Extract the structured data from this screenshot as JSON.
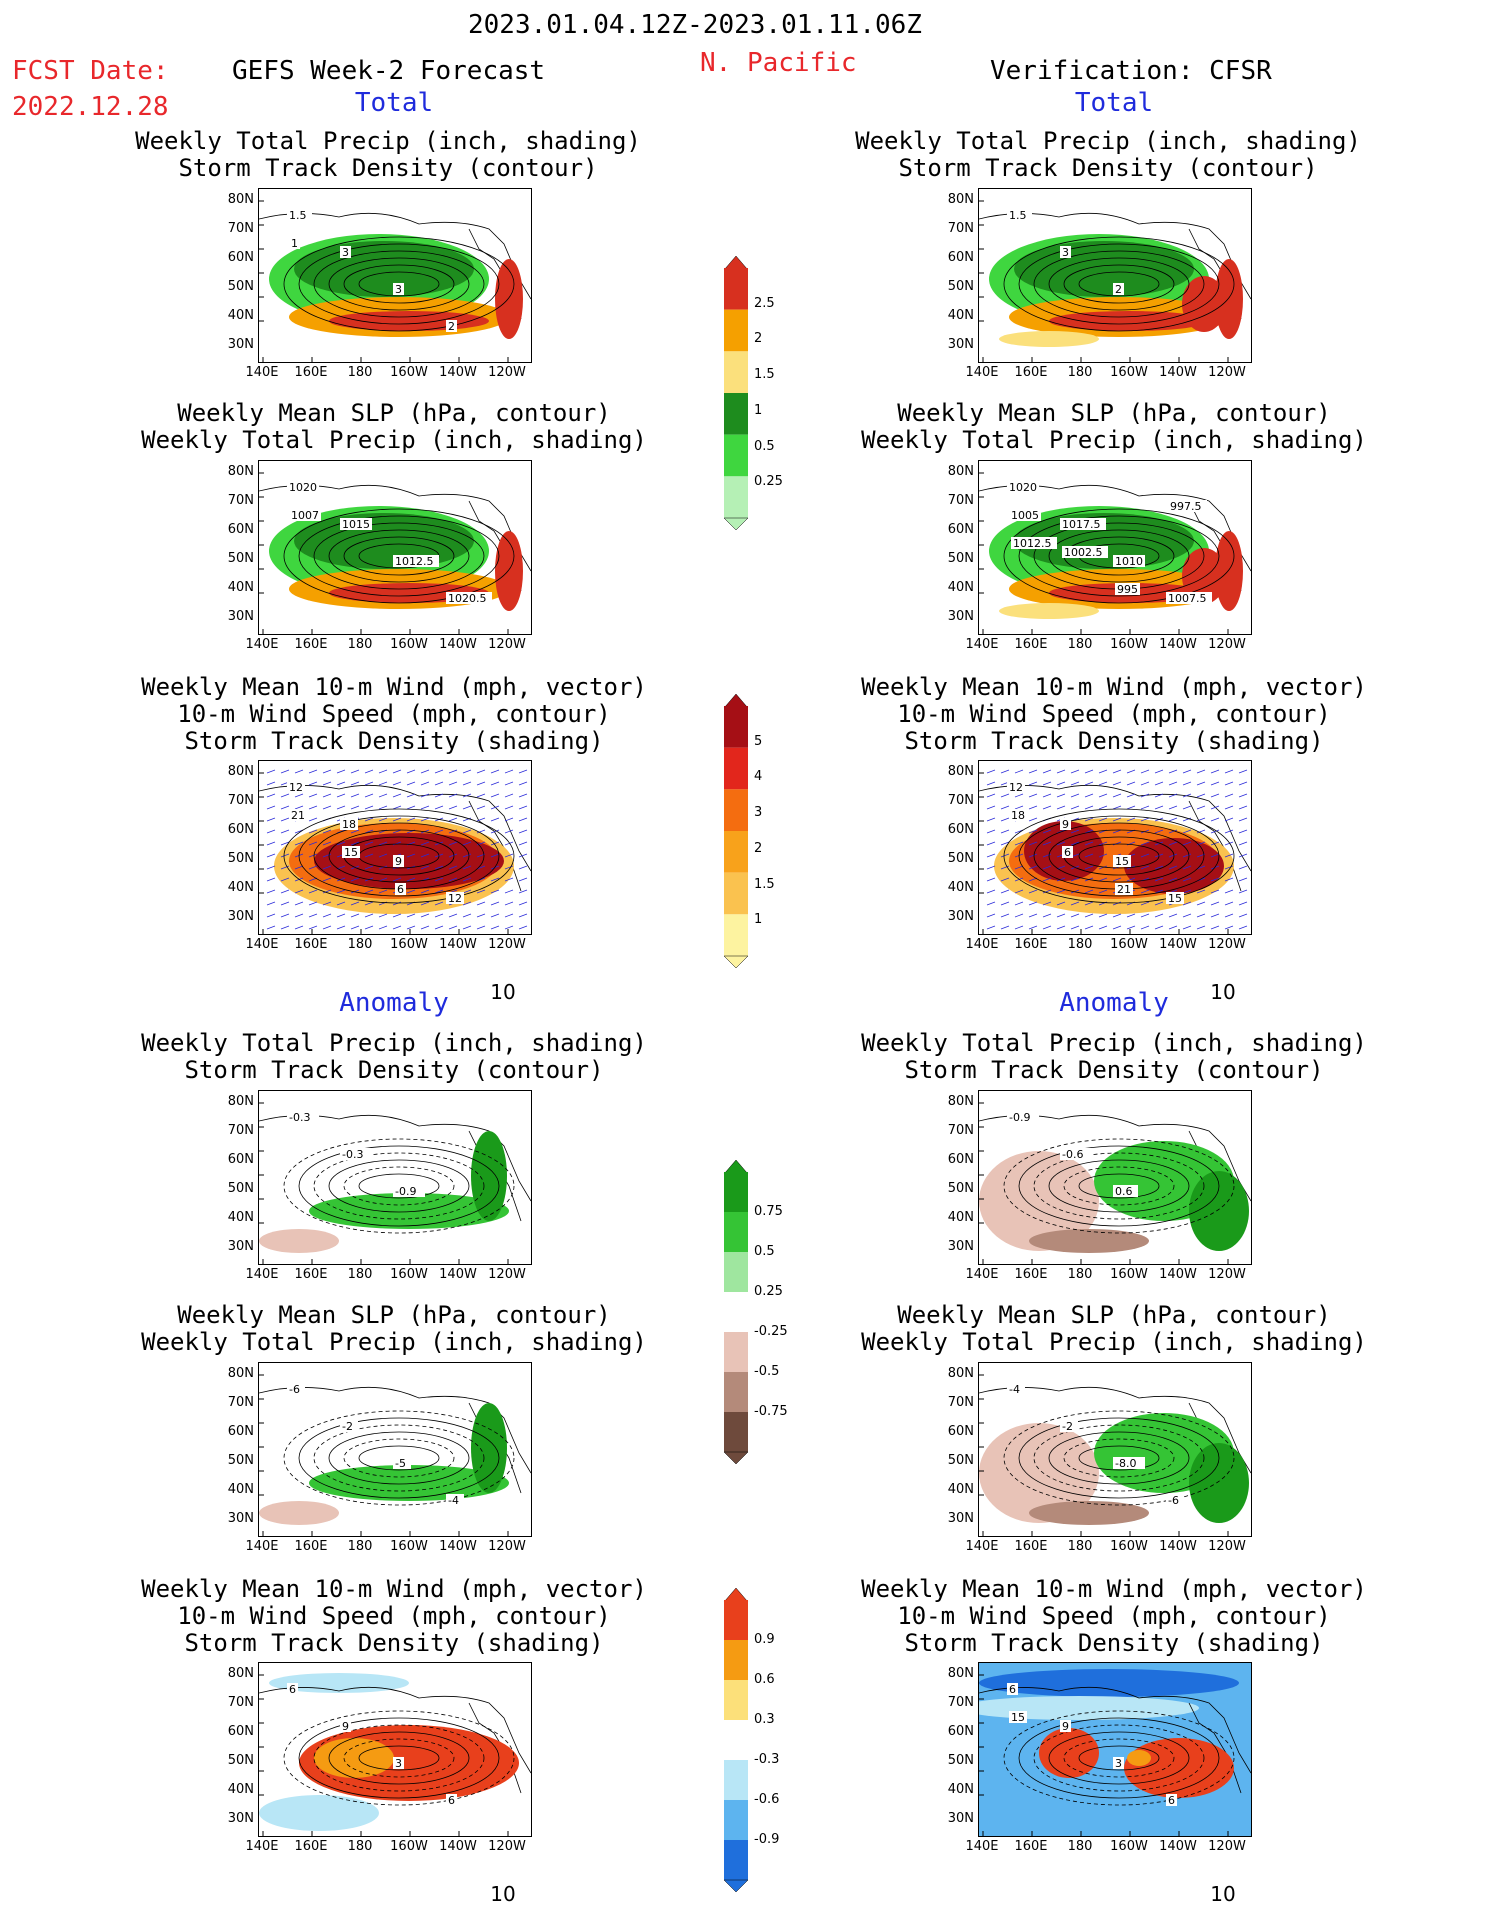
{
  "header": {
    "date_range": "2023.01.04.12Z-2023.01.11.06Z",
    "fcst_label": "FCST Date:",
    "fcst_date": "2022.12.28",
    "left_title": "GEFS Week-2 Forecast",
    "region": "N. Pacific",
    "right_title": "Verification: CFSR"
  },
  "sections": {
    "total": "Total",
    "anomaly": "Anomaly"
  },
  "panel_titles": {
    "precip_track": "Weekly Total Precip (inch, shading)\nStorm Track Density (contour)",
    "slp_precip": "Weekly Mean SLP (hPa, contour)\nWeekly Total Precip (inch, shading)",
    "wind_track": "Weekly Mean 10-m Wind (mph, vector)\n10-m Wind Speed (mph, contour)\nStorm Track Density (shading)"
  },
  "axes": {
    "lat_ticks": [
      "80N",
      "70N",
      "60N",
      "50N",
      "40N",
      "30N"
    ],
    "lon_ticks": [
      "140E",
      "160E",
      "180",
      "160W",
      "140W",
      "120W"
    ]
  },
  "vector_reference": "10",
  "colorbars": {
    "total_precip": {
      "labels": [
        "2.5",
        "2",
        "1.5",
        "1",
        "0.5",
        "0.25"
      ],
      "colors": [
        "#d7301f",
        "#f5a000",
        "#fbe07c",
        "#1e8c1e",
        "#3fd63f",
        "#b5f0b5"
      ]
    },
    "total_track": {
      "labels": [
        "5",
        "4",
        "3",
        "2",
        "1.5",
        "1"
      ],
      "colors": [
        "#a50f15",
        "#e2261c",
        "#f46d10",
        "#f8a21b",
        "#fac24f",
        "#fdf3a0"
      ]
    },
    "anom_precip": {
      "labels": [
        "0.75",
        "0.5",
        "0.25",
        "-0.25",
        "-0.5",
        "-0.75"
      ],
      "colors": [
        "#1a9a1a",
        "#35c435",
        "#9fe69f",
        "#ffffff",
        "#e8c3b7",
        "#b48a7a",
        "#6e4a3c"
      ]
    },
    "anom_track": {
      "labels": [
        "0.9",
        "0.6",
        "0.3",
        "-0.3",
        "-0.6",
        "-0.9"
      ],
      "colors": [
        "#e8401c",
        "#f59b12",
        "#fce07a",
        "#ffffff",
        "#b8e6f6",
        "#5db4ef",
        "#1f6fdc"
      ]
    }
  },
  "panels": [
    {
      "id": "l1",
      "labels": [
        "1.5",
        "3",
        "3",
        "2",
        "1"
      ]
    },
    {
      "id": "r1",
      "labels": [
        "1.5",
        "3",
        "2"
      ]
    },
    {
      "id": "l2",
      "labels": [
        "1020",
        "1015",
        "1012.5",
        "1020.5",
        "1007"
      ]
    },
    {
      "id": "r2",
      "labels": [
        "1020",
        "1017.5",
        "1010",
        "1007.5",
        "1005",
        "1002.5",
        "995",
        "997.5",
        "1012.5"
      ]
    },
    {
      "id": "l3",
      "labels": [
        "12",
        "18",
        "9",
        "12",
        "21",
        "15",
        "6"
      ]
    },
    {
      "id": "r3",
      "labels": [
        "12",
        "9",
        "15",
        "15",
        "18",
        "6",
        "21"
      ]
    },
    {
      "id": "l4",
      "labels": [
        "-0.3",
        "-0.3",
        "-0.9"
      ]
    },
    {
      "id": "r4",
      "labels": [
        "-0.9",
        "-0.6",
        "0.6"
      ]
    },
    {
      "id": "l5",
      "labels": [
        "-6",
        "-2",
        "-5",
        "-4"
      ]
    },
    {
      "id": "r5",
      "labels": [
        "-4",
        "-2",
        "-8.0",
        "-6"
      ]
    },
    {
      "id": "l6",
      "labels": [
        "6",
        "9",
        "3",
        "6"
      ]
    },
    {
      "id": "r6",
      "labels": [
        "6",
        "9",
        "3",
        "6",
        "15"
      ]
    }
  ],
  "colors": {
    "title_red": "#e8272b",
    "section_blue": "#1f2bdc",
    "vector_blue": "#2b2bd8"
  }
}
